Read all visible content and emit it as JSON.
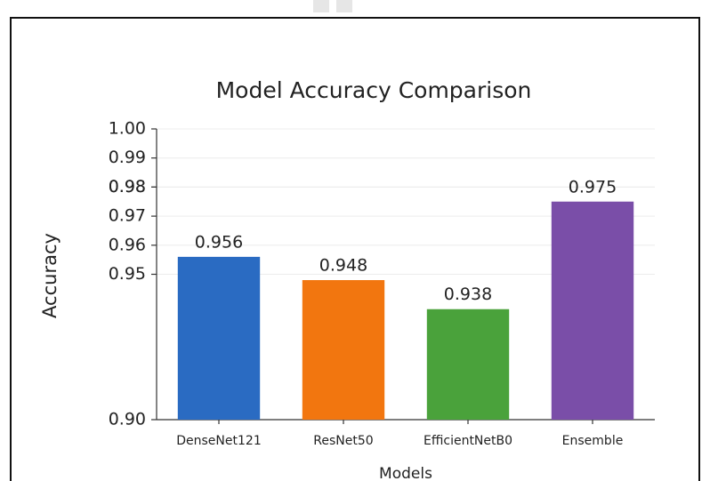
{
  "chart_data": {
    "type": "bar",
    "title": "Model Accuracy Comparison",
    "x_label": "Models",
    "y_label": "Accuracy",
    "categories": [
      "DenseNet121",
      "ResNet50",
      "EfficientNetB0",
      "Ensemble"
    ],
    "series": [
      {
        "name": "Accuracy",
        "values": [
          0.956,
          0.948,
          0.938,
          0.975
        ],
        "colors": [
          "#2a6bc2",
          "#f2760f",
          "#4aa23b",
          "#7a4ea8"
        ]
      }
    ],
    "ylim": [
      0.9,
      1
    ],
    "yticks": [
      {
        "value": 0.9,
        "label": "0.90"
      },
      0.95,
      0.96,
      0.97,
      0.98,
      0.98,
      0.99,
      {
        "value": 1,
        "label": "1.00"
      }
    ],
    "grid": true
  }
}
